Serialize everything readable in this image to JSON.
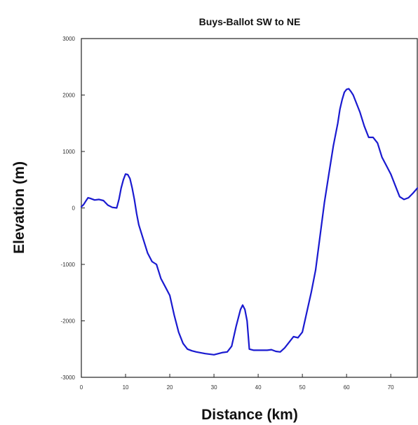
{
  "chart_data": {
    "type": "line",
    "title": "Buys-Ballot SW to NE",
    "xlabel": "Distance (km)",
    "ylabel": "Elevation (m)",
    "xlim": [
      0,
      76
    ],
    "ylim": [
      -3000,
      3000
    ],
    "xticks": [
      0,
      10,
      20,
      30,
      40,
      50,
      60,
      70
    ],
    "yticks": [
      -3000,
      -2000,
      -1000,
      0,
      1000,
      2000,
      3000
    ],
    "grid": false,
    "line_color": "#1a1ad0",
    "series": [
      {
        "x": [
          0,
          0.5,
          1,
          1.5,
          2,
          3,
          4,
          5,
          6,
          7,
          8,
          8.5,
          9,
          9.5,
          10,
          10.5,
          11,
          11.5,
          12,
          12.5,
          13,
          14,
          15,
          16,
          17,
          18,
          19,
          20,
          21,
          22,
          23,
          24,
          25,
          26,
          28,
          30,
          32,
          33,
          34,
          35,
          36,
          36.5,
          37,
          37.5,
          38,
          39,
          40,
          42,
          43,
          44,
          45,
          46,
          47,
          48,
          49,
          50,
          51,
          52,
          53,
          54,
          55,
          56,
          57,
          58,
          58.5,
          59,
          59.5,
          60,
          60.5,
          61,
          61.5,
          62,
          63,
          64,
          65,
          66,
          67,
          68,
          69,
          70,
          71,
          72,
          73,
          74,
          75,
          76
        ],
        "y": [
          20,
          60,
          120,
          180,
          170,
          140,
          150,
          130,
          50,
          10,
          0,
          150,
          350,
          500,
          600,
          590,
          520,
          350,
          150,
          -100,
          -300,
          -550,
          -800,
          -950,
          -1000,
          -1250,
          -1400,
          -1550,
          -1900,
          -2200,
          -2400,
          -2500,
          -2530,
          -2550,
          -2580,
          -2600,
          -2560,
          -2550,
          -2450,
          -2100,
          -1800,
          -1720,
          -1800,
          -2000,
          -2500,
          -2520,
          -2520,
          -2520,
          -2510,
          -2540,
          -2550,
          -2480,
          -2380,
          -2280,
          -2300,
          -2200,
          -1850,
          -1500,
          -1100,
          -500,
          100,
          600,
          1100,
          1500,
          1750,
          1920,
          2050,
          2100,
          2110,
          2060,
          2000,
          1900,
          1700,
          1450,
          1250,
          1250,
          1150,
          900,
          750,
          600,
          400,
          200,
          150,
          180,
          260,
          350
        ]
      }
    ]
  }
}
